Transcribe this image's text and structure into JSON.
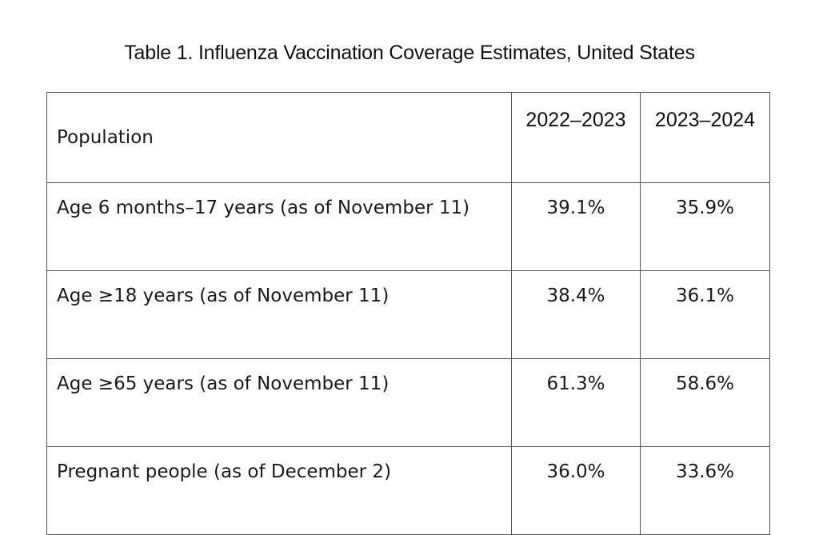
{
  "title": "Table 1. Influenza Vaccination Coverage Estimates, United States",
  "table": {
    "headers": {
      "population": "Population",
      "season_1": "2022–2023",
      "season_2": "2023–2024"
    },
    "rows": [
      {
        "population": "Age 6 months–17 years (as of November 11)",
        "season_1": "39.1%",
        "season_2": "35.9%"
      },
      {
        "population": "Age ≥18 years (as of November 11)",
        "season_1": "38.4%",
        "season_2": "36.1%"
      },
      {
        "population": "Age ≥65 years (as of November 11)",
        "season_1": "61.3%",
        "season_2": "58.6%"
      },
      {
        "population": "Pregnant people (as of December 2)",
        "season_1": "36.0%",
        "season_2": "33.6%"
      }
    ]
  }
}
